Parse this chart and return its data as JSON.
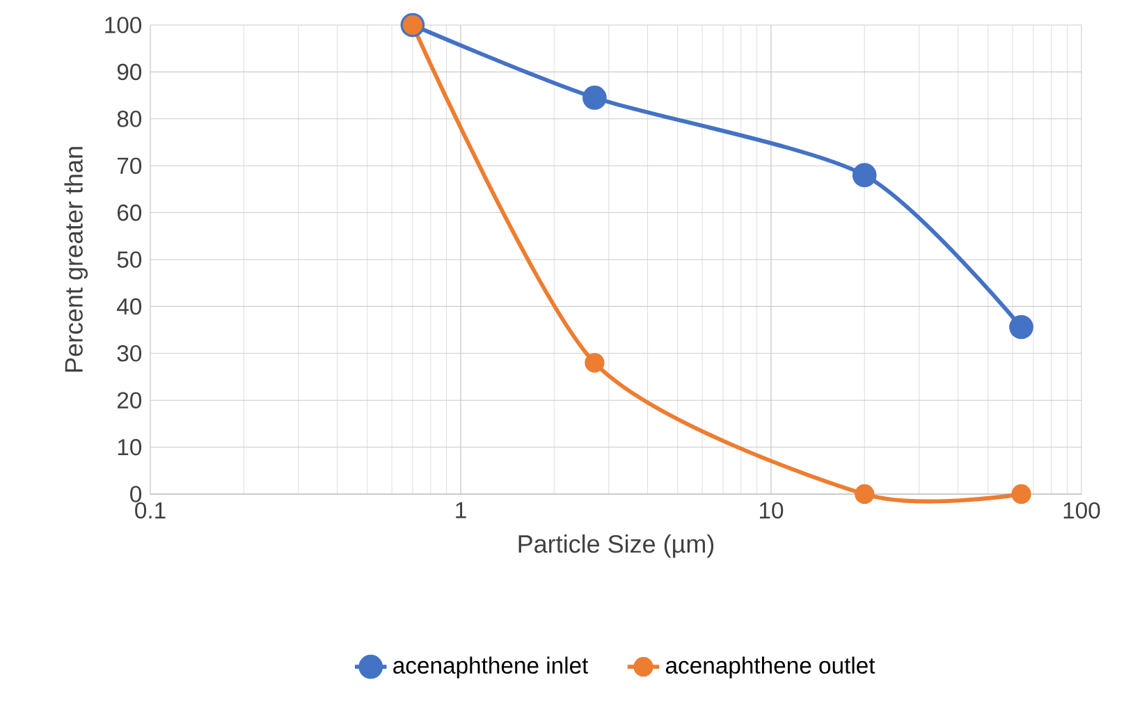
{
  "chart_data": {
    "type": "line",
    "xlabel": "Particle Size (µm)",
    "ylabel": "Percent greater than",
    "log": "x",
    "xlim": [
      0.1,
      100
    ],
    "xticks": [
      0.1,
      1,
      10,
      100
    ],
    "ylim": [
      0,
      100
    ],
    "yticks": [
      0,
      10,
      20,
      30,
      40,
      50,
      60,
      70,
      80,
      90,
      100
    ],
    "grid": true,
    "legend": "bottom",
    "marker": "circle",
    "line_style": "solid",
    "series": [
      {
        "name": "acenaphthene inlet",
        "color": "#4472c4",
        "x": [
          0.7,
          2.7,
          20,
          64
        ],
        "values": [
          100,
          84.5,
          68,
          35.6
        ]
      },
      {
        "name": "acenaphthene outlet",
        "color": "#ed7d31",
        "x": [
          0.7,
          2.7,
          20,
          64
        ],
        "values": [
          100,
          28,
          0,
          0
        ]
      }
    ]
  }
}
